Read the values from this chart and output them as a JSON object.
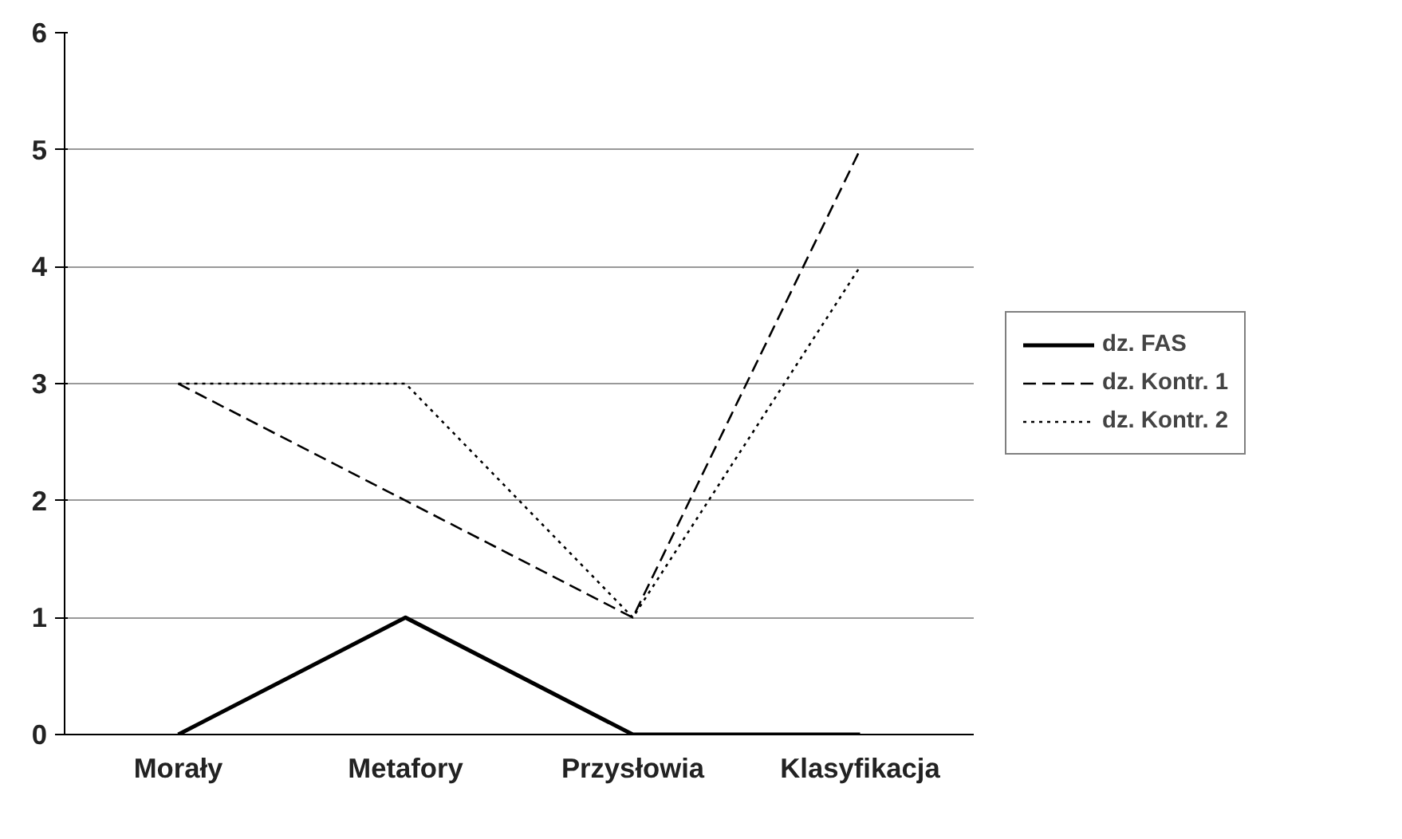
{
  "chart_data": {
    "type": "line",
    "categories": [
      "Morały",
      "Metafory",
      "Przysłowia",
      "Klasyfikacja"
    ],
    "series": [
      {
        "name": "dz. FAS",
        "color": "#000000",
        "values": [
          0,
          1,
          0,
          0
        ],
        "line_style": "solid"
      },
      {
        "name": "dz. Kontr. 1",
        "color": "#000000",
        "values": [
          3,
          2,
          1,
          5
        ],
        "line_style": "dashed"
      },
      {
        "name": "dz. Kontr. 2",
        "color": "#000000",
        "values": [
          3,
          3,
          1,
          4
        ],
        "line_style": "dotted"
      }
    ],
    "ylim": [
      0,
      6
    ],
    "yticks": [
      0,
      1,
      2,
      3,
      4,
      5,
      6
    ],
    "grid": "y",
    "legend": "right",
    "marker": "none"
  }
}
